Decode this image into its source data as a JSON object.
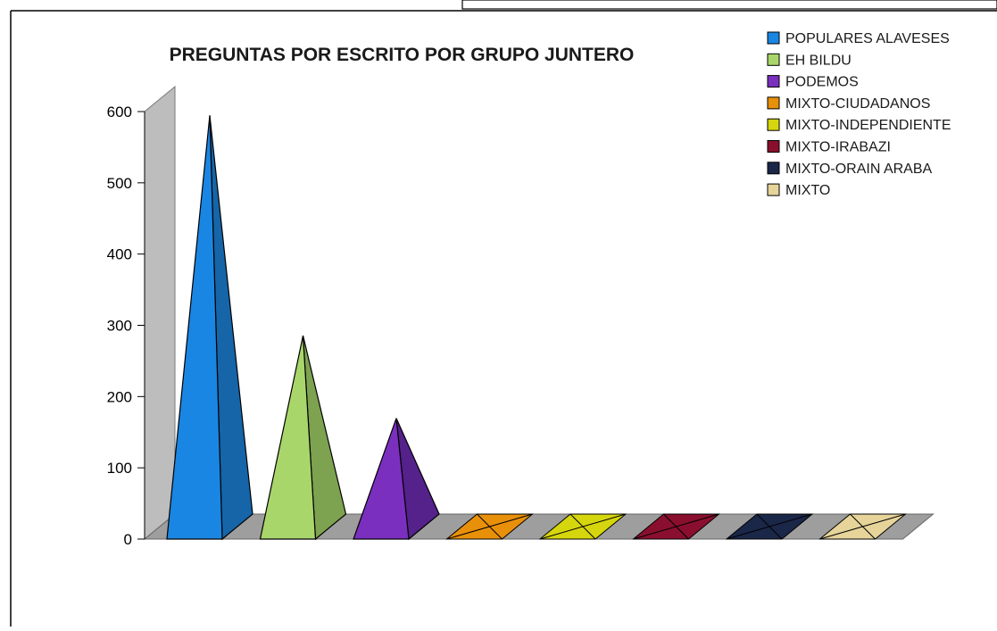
{
  "chart_data": {
    "type": "bar",
    "bar_shape": "3d-pyramid",
    "title": "PREGUNTAS POR ESCRITO POR GRUPO JUNTERO",
    "xlabel": "",
    "ylabel": "",
    "ylim": [
      0,
      600
    ],
    "yticks": [
      "0",
      "100",
      "200",
      "300",
      "400",
      "500",
      "600"
    ],
    "grid": false,
    "legend_position": "top-right",
    "categories": [
      "POPULARES ALAVESES",
      "EH BILDU",
      "PODEMOS",
      "MIXTO-CIUDADANOS",
      "MIXTO-INDEPENDIENTE",
      "MIXTO-IRABAZI",
      "MIXTO-ORAIN ARABA",
      "MIXTO"
    ],
    "legend": [
      "POPULARES ALAVESES",
      "EH BILDU",
      "PODEMOS",
      "MIXTO-CIUDADANOS",
      "MIXTO-INDEPENDIENTE",
      "MIXTO-IRABAZI",
      "MIXTO-ORAIN ARABA",
      "MIXTO"
    ],
    "values": [
      577,
      268,
      152,
      0,
      0,
      0,
      0,
      0
    ],
    "colors": [
      "#1a86e3",
      "#a9d66b",
      "#7b2fbf",
      "#e8900a",
      "#d6d60e",
      "#8a0f2e",
      "#1b2748",
      "#e6d49a"
    ],
    "colors_dark": [
      "#1565a8",
      "#7da250",
      "#55218a",
      "#b06b05",
      "#a3a30a",
      "#600a1f",
      "#111a33",
      "#b3a574"
    ]
  }
}
